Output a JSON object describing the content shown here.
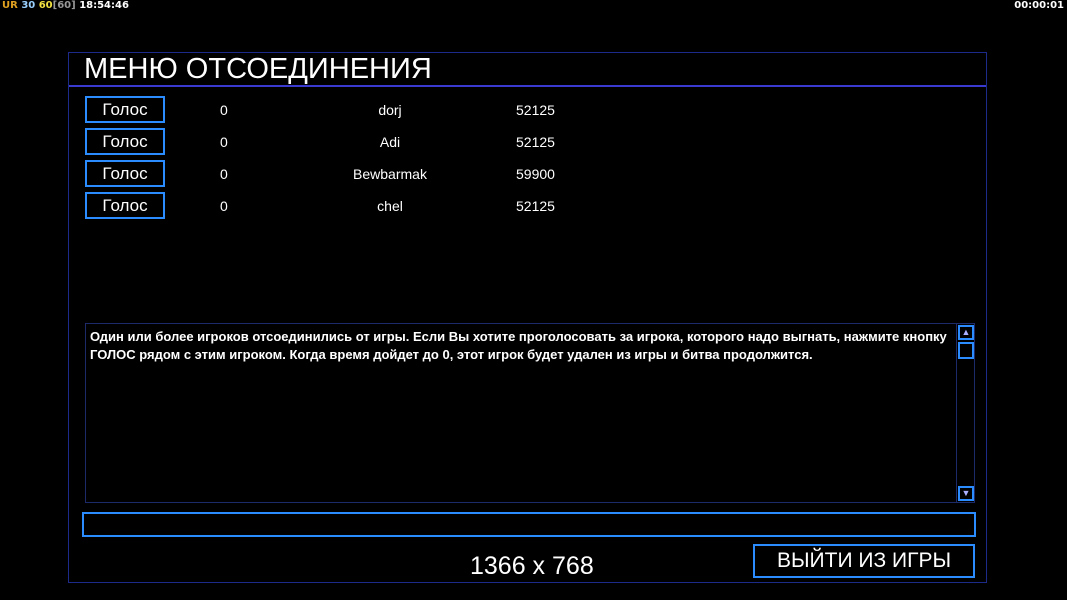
{
  "hud": {
    "ur": "UR",
    "fps1": "30",
    "fps2": "60",
    "fps3": "[60]",
    "clock": "18:54:46",
    "timer": "00:00:01"
  },
  "title": "МЕНЮ ОТСОЕДИНЕНИЯ",
  "players": [
    {
      "vote": "Голос",
      "count": "0",
      "name": "dorj",
      "value": "52125"
    },
    {
      "vote": "Голос",
      "count": "0",
      "name": "Adi",
      "value": "52125"
    },
    {
      "vote": "Голос",
      "count": "0",
      "name": "Bewbarmak",
      "value": "59900"
    },
    {
      "vote": "Голос",
      "count": "0",
      "name": "chel",
      "value": "52125"
    }
  ],
  "message": "Один или более игроков отсоединились от игры. Если Вы хотите проголосовать за игрока, которого надо выгнать, нажмите кнопку ГОЛОС рядом с этим игроком. Когда время дойдет до 0, этот игрок будет удален из игры и битва продолжится.",
  "chat_input": "",
  "exit_label": "ВЫЙТИ ИЗ ИГРЫ",
  "resolution": "1366 x 768",
  "colors": {
    "accent": "#2a8cff",
    "frame": "#1c2a8a"
  }
}
